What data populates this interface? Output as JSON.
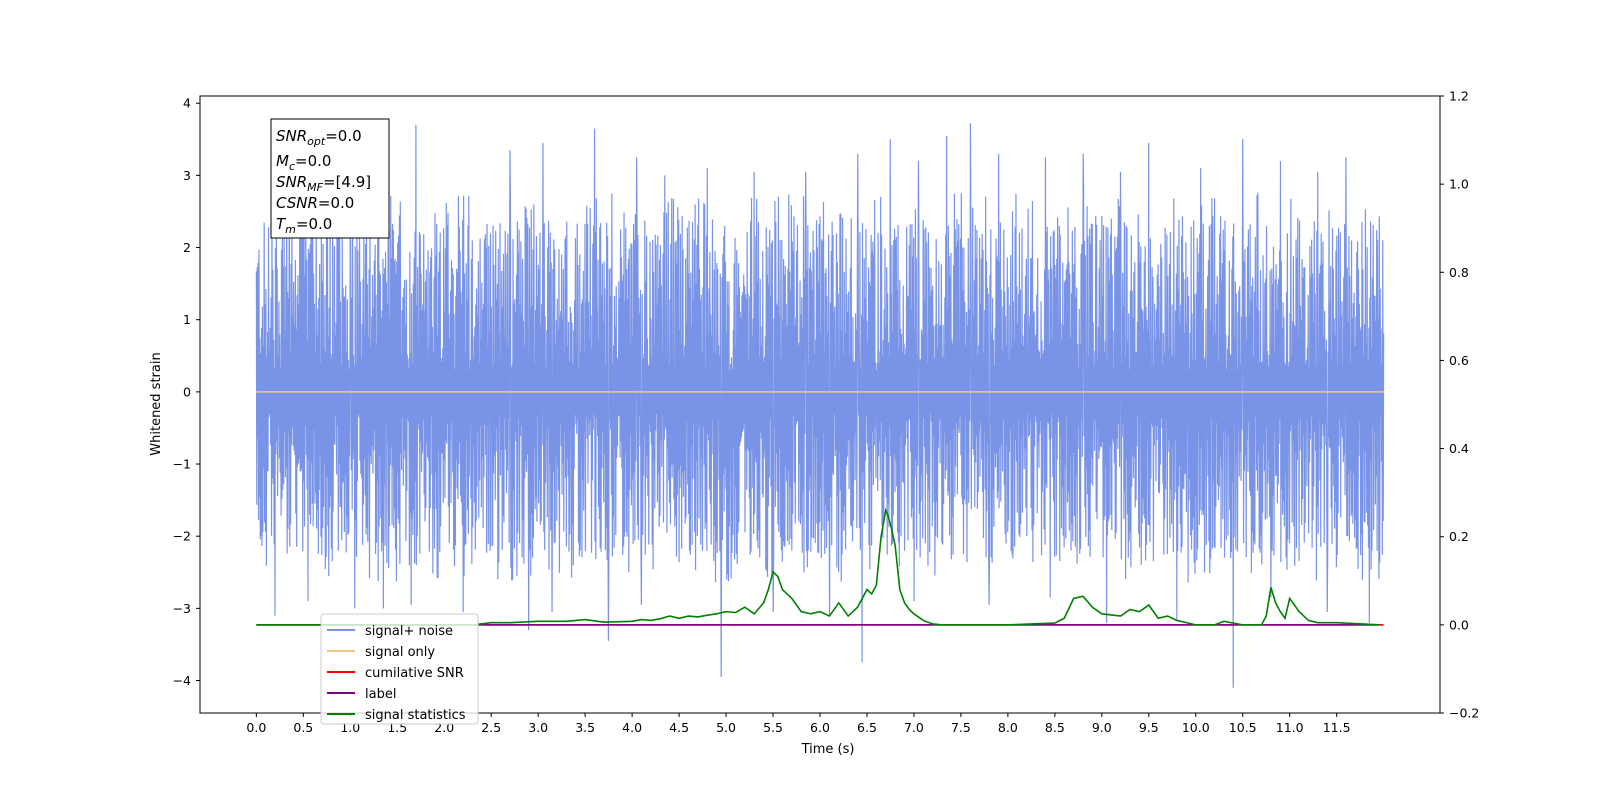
{
  "chart_data": {
    "type": "line",
    "title": "",
    "xlabel": "Time (s)",
    "ylabel": "Whitened strain",
    "xlim": [
      -0.6,
      12.6
    ],
    "ylim": [
      -4.45,
      4.1
    ],
    "y2lim": [
      -0.2,
      1.2
    ],
    "xticks": [
      0.0,
      0.5,
      1.0,
      1.5,
      2.0,
      2.5,
      3.0,
      3.5,
      4.0,
      4.5,
      5.0,
      5.5,
      6.0,
      6.5,
      7.0,
      7.5,
      8.0,
      8.5,
      9.0,
      9.5,
      10.0,
      10.5,
      11.0,
      11.5
    ],
    "xtick_labels": [
      "0.0",
      "0.5",
      "1.0",
      "1.5",
      "2.0",
      "2.5",
      "3.0",
      "3.5",
      "4.0",
      "4.5",
      "5.0",
      "5.5",
      "6.0",
      "6.5",
      "7.0",
      "7.5",
      "8.0",
      "8.5",
      "9.0",
      "9.5",
      "10.0",
      "10.5",
      "11.0",
      "11.5"
    ],
    "yticks": [
      -4,
      -3,
      -2,
      -1,
      0,
      1,
      2,
      3,
      4
    ],
    "ytick_labels": [
      "−4",
      "−3",
      "−2",
      "−1",
      "0",
      "1",
      "2",
      "3",
      "4"
    ],
    "y2ticks": [
      -0.2,
      0.0,
      0.2,
      0.4,
      0.6,
      0.8,
      1.0,
      1.2
    ],
    "y2tick_labels": [
      "−0.2",
      "0.0",
      "0.2",
      "0.4",
      "0.6",
      "0.8",
      "1.0",
      "1.2"
    ],
    "grid": false,
    "legend_position": "lower-left",
    "annotation_box": [
      "SNR_opt=0.0",
      "M_c=0.0",
      "SNR_MF=[4.9]",
      "CSNR=0.0",
      "T_m=0.0"
    ],
    "noise": {
      "x_start": 0.0,
      "x_end": 12.0,
      "envelope_low": -2.3,
      "envelope_high": 2.4,
      "peak_max": [
        [
          0.05,
          2.45
        ],
        [
          0.35,
          3.15
        ],
        [
          0.55,
          2.9
        ],
        [
          1.0,
          3.3
        ],
        [
          1.3,
          3.45
        ],
        [
          1.7,
          3.7
        ],
        [
          2.2,
          3.6
        ],
        [
          2.7,
          3.35
        ],
        [
          3.05,
          3.45
        ],
        [
          3.6,
          3.65
        ],
        [
          4.05,
          3.25
        ],
        [
          4.35,
          3.0
        ],
        [
          4.8,
          3.1
        ],
        [
          5.3,
          3.05
        ],
        [
          5.85,
          3.05
        ],
        [
          6.4,
          3.3
        ],
        [
          6.75,
          3.5
        ],
        [
          7.05,
          3.2
        ],
        [
          7.35,
          3.55
        ],
        [
          7.6,
          3.72
        ],
        [
          7.9,
          3.3
        ],
        [
          8.4,
          3.25
        ],
        [
          8.8,
          3.3
        ],
        [
          9.2,
          3.05
        ],
        [
          9.5,
          3.45
        ],
        [
          10.05,
          3.1
        ],
        [
          10.5,
          3.5
        ],
        [
          10.9,
          3.2
        ],
        [
          11.3,
          3.05
        ],
        [
          11.6,
          3.25
        ]
      ],
      "trough_min": [
        [
          0.05,
          -2.0
        ],
        [
          0.2,
          -3.1
        ],
        [
          0.55,
          -2.9
        ],
        [
          1.05,
          -3.0
        ],
        [
          1.35,
          -3.0
        ],
        [
          1.65,
          -2.95
        ],
        [
          2.2,
          -3.05
        ],
        [
          2.9,
          -3.3
        ],
        [
          3.15,
          -3.05
        ],
        [
          3.75,
          -3.45
        ],
        [
          4.1,
          -2.95
        ],
        [
          4.95,
          -3.95
        ],
        [
          5.5,
          -3.05
        ],
        [
          6.1,
          -3.1
        ],
        [
          6.45,
          -3.75
        ],
        [
          7.0,
          -2.9
        ],
        [
          7.8,
          -2.95
        ],
        [
          8.45,
          -2.85
        ],
        [
          9.05,
          -3.2
        ],
        [
          9.8,
          -3.15
        ],
        [
          10.4,
          -4.1
        ],
        [
          10.8,
          -2.85
        ],
        [
          11.4,
          -3.05
        ],
        [
          11.85,
          -3.2
        ]
      ]
    },
    "series": [
      {
        "name": "signal+ noise",
        "color": "#7993e6",
        "axis": "left",
        "note": "whitened strain trace (dense noise), values rendered procedurally between envelope and extreme points"
      },
      {
        "name": "signal only",
        "color": "#f5c77e",
        "axis": "left",
        "x": [
          0.0,
          12.0
        ],
        "y": [
          0.0,
          0.0
        ]
      },
      {
        "name": "cumilative SNR",
        "color": "#ff0000",
        "axis": "right",
        "x": [
          0.0,
          12.0
        ],
        "y": [
          0.0,
          0.0
        ]
      },
      {
        "name": "label",
        "color": "#800080",
        "axis": "right",
        "x": [
          0.0,
          11.95
        ],
        "y": [
          0.0,
          0.0
        ]
      },
      {
        "name": "signal statistics",
        "color": "#008000",
        "axis": "right",
        "x": [
          0.0,
          0.5,
          1.0,
          1.5,
          2.0,
          2.3,
          2.5,
          2.7,
          3.0,
          3.3,
          3.5,
          3.7,
          4.0,
          4.1,
          4.2,
          4.3,
          4.4,
          4.5,
          4.6,
          4.7,
          4.8,
          4.9,
          5.0,
          5.1,
          5.2,
          5.3,
          5.4,
          5.45,
          5.5,
          5.55,
          5.6,
          5.7,
          5.8,
          5.9,
          6.0,
          6.1,
          6.2,
          6.3,
          6.4,
          6.5,
          6.55,
          6.6,
          6.65,
          6.7,
          6.72,
          6.76,
          6.8,
          6.85,
          6.9,
          6.95,
          7.0,
          7.1,
          7.2,
          7.3,
          7.5,
          8.0,
          8.5,
          8.6,
          8.7,
          8.8,
          8.9,
          9.0,
          9.2,
          9.3,
          9.4,
          9.5,
          9.6,
          9.7,
          9.8,
          9.9,
          10.0,
          10.2,
          10.3,
          10.5,
          10.7,
          10.75,
          10.8,
          10.85,
          10.9,
          10.95,
          11.0,
          11.1,
          11.2,
          11.3,
          11.5,
          11.95
        ],
        "y": [
          0.0,
          0.0,
          0.0,
          0.0,
          0.0,
          0.0,
          0.005,
          0.005,
          0.008,
          0.008,
          0.012,
          0.006,
          0.008,
          0.012,
          0.01,
          0.014,
          0.02,
          0.015,
          0.02,
          0.018,
          0.022,
          0.025,
          0.03,
          0.028,
          0.04,
          0.025,
          0.05,
          0.08,
          0.12,
          0.11,
          0.08,
          0.06,
          0.03,
          0.025,
          0.03,
          0.02,
          0.05,
          0.02,
          0.04,
          0.08,
          0.07,
          0.09,
          0.2,
          0.26,
          0.25,
          0.22,
          0.18,
          0.08,
          0.05,
          0.035,
          0.025,
          0.01,
          0.002,
          0.0,
          0.0,
          0.0,
          0.004,
          0.015,
          0.06,
          0.065,
          0.04,
          0.025,
          0.02,
          0.035,
          0.03,
          0.045,
          0.015,
          0.02,
          0.01,
          0.005,
          0.0,
          0.0,
          0.008,
          0.0,
          0.0,
          0.02,
          0.085,
          0.05,
          0.03,
          0.015,
          0.06,
          0.03,
          0.01,
          0.005,
          0.005,
          0.0
        ]
      }
    ]
  }
}
